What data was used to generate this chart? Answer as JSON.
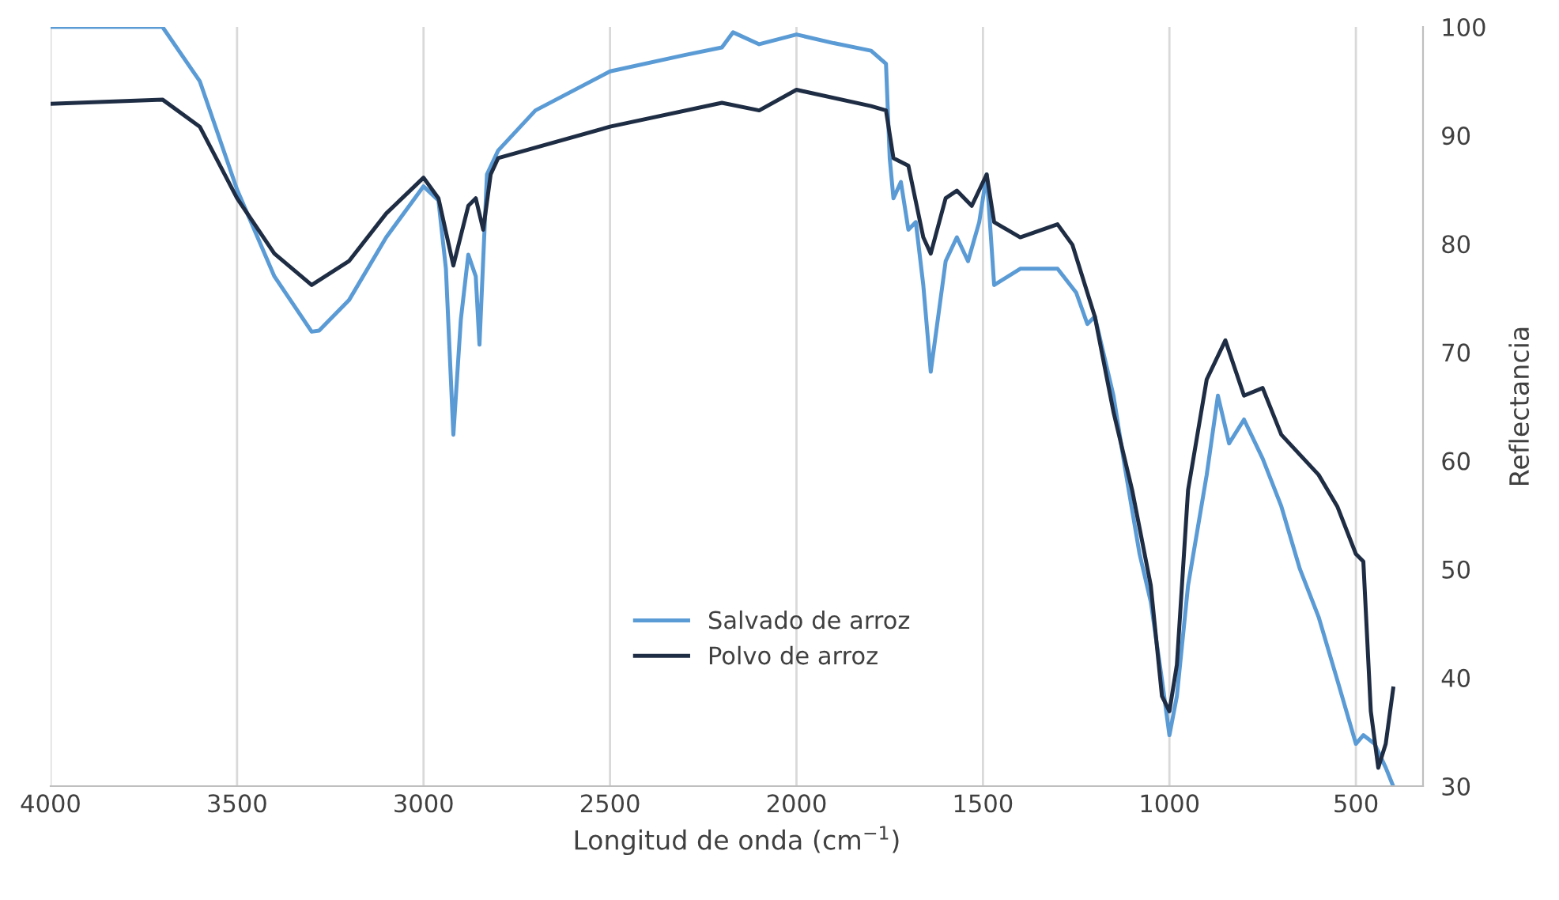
{
  "chart_data": {
    "type": "line",
    "xlabel": "Longitud de onda (cm$^{−1}$)",
    "ylabel": "Reflectancia",
    "xlim": [
      4000,
      320
    ],
    "xticks": [
      4000,
      3500,
      3000,
      2500,
      2000,
      1500,
      1000,
      500
    ],
    "ylim": [
      30,
      100
    ],
    "yticks": [
      30,
      40,
      50,
      60,
      70,
      80,
      90,
      100
    ],
    "grid": "x",
    "legend": "center",
    "marker": "none",
    "line_style": "solid",
    "series": [
      {
        "name": "Salvado de arroz",
        "color": "#5b9bd5",
        "x": [
          4000,
          3700,
          3600,
          3500,
          3400,
          3300,
          3280,
          3200,
          3100,
          3000,
          2960,
          2940,
          2920,
          2900,
          2880,
          2860,
          2850,
          2830,
          2800,
          2700,
          2500,
          2300,
          2200,
          2170,
          2100,
          2000,
          1900,
          1800,
          1760,
          1750,
          1740,
          1720,
          1700,
          1680,
          1660,
          1640,
          1600,
          1570,
          1540,
          1510,
          1490,
          1470,
          1400,
          1300,
          1250,
          1220,
          1200,
          1150,
          1120,
          1080,
          1050,
          1020,
          1000,
          980,
          950,
          900,
          870,
          840,
          800,
          750,
          700,
          650,
          600,
          550,
          500,
          480,
          450,
          420,
          400
        ],
        "values": [
          100,
          100,
          95,
          85,
          77,
          71.9,
          72,
          74.8,
          80.6,
          85.3,
          84,
          77.7,
          62.4,
          73,
          79,
          77,
          70.7,
          86.4,
          88.6,
          92.3,
          95.9,
          97.4,
          98.1,
          99.5,
          98.4,
          99.3,
          98.5,
          97.8,
          96.6,
          87.9,
          84.2,
          85.7,
          81.3,
          82,
          76.2,
          68.2,
          78.4,
          80.6,
          78.4,
          82,
          86.4,
          76.2,
          77.7,
          77.7,
          75.5,
          72.6,
          73.3,
          66,
          59.5,
          51.4,
          47,
          39.8,
          34.7,
          38.3,
          48.5,
          58.7,
          66,
          61.6,
          63.8,
          60.2,
          55.8,
          50,
          45.6,
          39.8,
          33.9,
          34.7,
          33.9,
          31.7,
          30
        ]
      },
      {
        "name": "Polvo de arroz",
        "color": "#1f2d44",
        "x": [
          4000,
          3700,
          3600,
          3500,
          3400,
          3300,
          3200,
          3100,
          3000,
          2960,
          2920,
          2880,
          2860,
          2840,
          2820,
          2800,
          2500,
          2200,
          2100,
          2000,
          1800,
          1760,
          1740,
          1700,
          1660,
          1640,
          1600,
          1570,
          1530,
          1490,
          1470,
          1400,
          1300,
          1260,
          1200,
          1150,
          1100,
          1050,
          1020,
          1000,
          980,
          950,
          900,
          850,
          800,
          750,
          700,
          600,
          550,
          500,
          480,
          460,
          440,
          420,
          400
        ],
        "values": [
          92.9,
          93.3,
          90.8,
          84.2,
          79.1,
          76.2,
          78.4,
          82.8,
          86.1,
          84.2,
          78,
          83.5,
          84.2,
          81.3,
          86.4,
          87.9,
          90.8,
          93,
          92.3,
          94.2,
          92.7,
          92.3,
          87.9,
          87.2,
          80.6,
          79.1,
          84.2,
          84.9,
          83.5,
          86.4,
          82,
          80.6,
          81.8,
          79.9,
          73.3,
          64.5,
          57.3,
          48.5,
          38.3,
          36.9,
          41.2,
          57.3,
          67.5,
          71.1,
          66,
          66.7,
          62.4,
          58.7,
          55.8,
          51.4,
          50.7,
          36.9,
          31.7,
          33.9,
          39
        ]
      }
    ]
  }
}
